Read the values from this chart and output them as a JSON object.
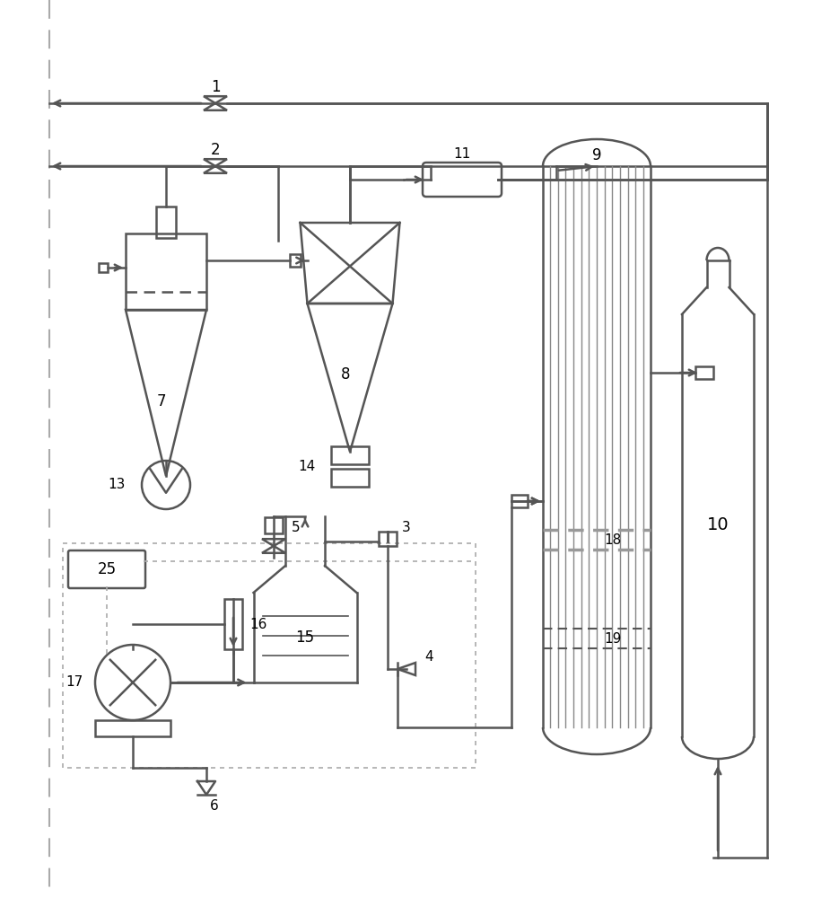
{
  "bg_color": "#ffffff",
  "lc": "#555555",
  "lw": 1.8,
  "gray": "#888888"
}
